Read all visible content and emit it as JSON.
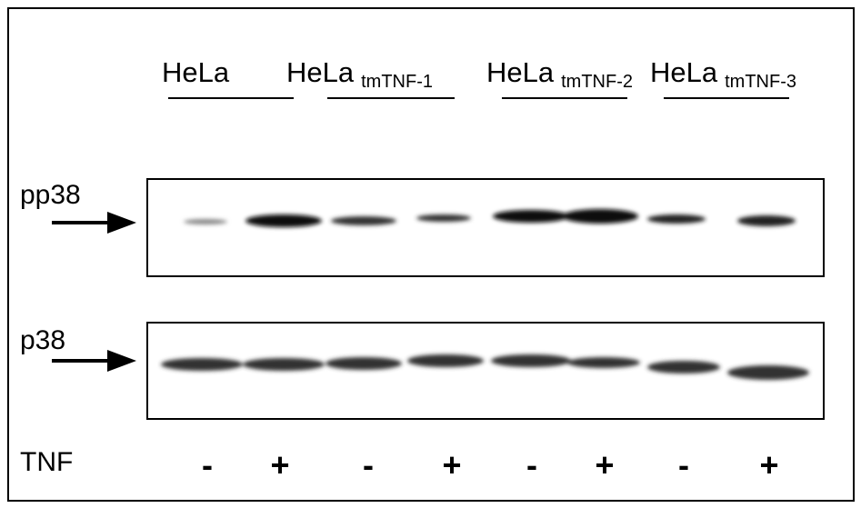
{
  "groups": [
    {
      "name": "HeLa"
    },
    {
      "name": "HeLa",
      "subscript": "tmTNF-1"
    },
    {
      "name": "HeLa",
      "subscript": "tmTNF-2"
    },
    {
      "name": "HeLa",
      "subscript": "tmTNF-3"
    }
  ],
  "blots": [
    {
      "label": "pp38"
    },
    {
      "label": "p38"
    }
  ],
  "treatment": {
    "label": "TNF",
    "signs": [
      "-",
      "+",
      "-",
      "+",
      "-",
      "+",
      "-",
      "+"
    ]
  }
}
